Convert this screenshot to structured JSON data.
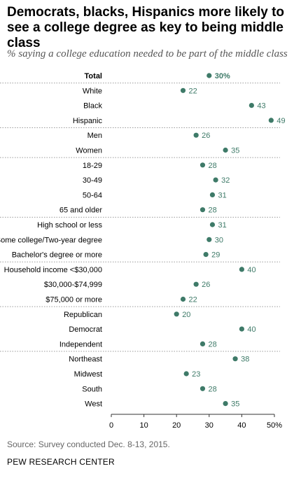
{
  "title": "Democrats, blacks, Hispanics more likely to see a college degree as key to being middle class",
  "subtitle": "% saying a college education needed to be part of the middle class",
  "source": "Source: Survey conducted Dec. 8-13, 2015.",
  "organization": "PEW RESEARCH CENTER",
  "colors": {
    "dot": "#3e7a68",
    "divider": "#9a9a9a",
    "axis": "#333333"
  },
  "chart_data": {
    "type": "scatter",
    "orientation": "horizontal-dot-plot",
    "x_axis": {
      "min": 0,
      "max": 50,
      "ticks": [
        0,
        10,
        20,
        30,
        40,
        50
      ],
      "tick_labels": [
        "0",
        "10",
        "20",
        "30",
        "40",
        "50%"
      ]
    },
    "groups": [
      {
        "rows": [
          {
            "label": "Total",
            "value": 30,
            "value_label": "30%",
            "bold": true
          }
        ]
      },
      {
        "rows": [
          {
            "label": "White",
            "value": 22,
            "value_label": "22"
          },
          {
            "label": "Black",
            "value": 43,
            "value_label": "43"
          },
          {
            "label": "Hispanic",
            "value": 49,
            "value_label": "49"
          }
        ]
      },
      {
        "rows": [
          {
            "label": "Men",
            "value": 26,
            "value_label": "26"
          },
          {
            "label": "Women",
            "value": 35,
            "value_label": "35"
          }
        ]
      },
      {
        "rows": [
          {
            "label": "18-29",
            "value": 28,
            "value_label": "28"
          },
          {
            "label": "30-49",
            "value": 32,
            "value_label": "32"
          },
          {
            "label": "50-64",
            "value": 31,
            "value_label": "31"
          },
          {
            "label": "65 and older",
            "value": 28,
            "value_label": "28"
          }
        ]
      },
      {
        "rows": [
          {
            "label": "High school or less",
            "value": 31,
            "value_label": "31"
          },
          {
            "label": "Some college/Two-year degree",
            "value": 30,
            "value_label": "30"
          },
          {
            "label": "Bachelor's degree or more",
            "value": 29,
            "value_label": "29"
          }
        ]
      },
      {
        "rows": [
          {
            "label": "Household income <$30,000",
            "value": 40,
            "value_label": "40"
          },
          {
            "label": "$30,000-$74,999",
            "value": 26,
            "value_label": "26"
          },
          {
            "label": "$75,000 or more",
            "value": 22,
            "value_label": "22"
          }
        ]
      },
      {
        "rows": [
          {
            "label": "Republican",
            "value": 20,
            "value_label": "20"
          },
          {
            "label": "Democrat",
            "value": 40,
            "value_label": "40"
          },
          {
            "label": "Independent",
            "value": 28,
            "value_label": "28"
          }
        ]
      },
      {
        "rows": [
          {
            "label": "Northeast",
            "value": 38,
            "value_label": "38"
          },
          {
            "label": "Midwest",
            "value": 23,
            "value_label": "23"
          },
          {
            "label": "South",
            "value": 28,
            "value_label": "28"
          },
          {
            "label": "West",
            "value": 35,
            "value_label": "35"
          }
        ]
      }
    ]
  }
}
